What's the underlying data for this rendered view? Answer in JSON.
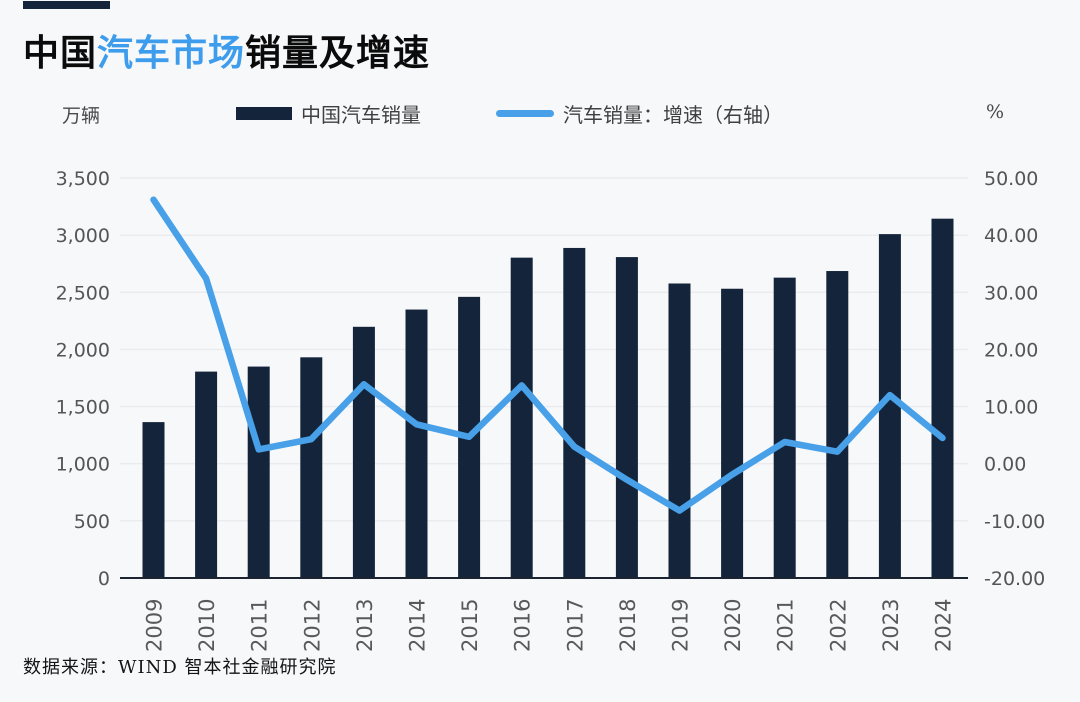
{
  "title": {
    "prefix": "中国",
    "highlight": "汽车市场",
    "suffix": "销量及增速"
  },
  "colors": {
    "bar": "#14243A",
    "line": "#47A0E8",
    "title_highlight": "#3E9CEC",
    "accent_bar": "#14243A",
    "background": "#F7F8FA",
    "grid": "#E9EBEF",
    "zero_axis": "#1B2430",
    "tick_text": "#555555",
    "year_text": "#595959"
  },
  "legend": {
    "bar_label": "中国汽车销量",
    "line_label": "汽车销量：增速（右轴）"
  },
  "source": "数据来源：WIND 智本社金融研究院",
  "chart_data": {
    "type": "combo-bar-line",
    "title": "中国汽车市场销量及增速",
    "categories": [
      "2009",
      "2010",
      "2011",
      "2012",
      "2013",
      "2014",
      "2015",
      "2016",
      "2017",
      "2018",
      "2019",
      "2020",
      "2021",
      "2022",
      "2023",
      "2024"
    ],
    "series": [
      {
        "name": "中国汽车销量",
        "type": "bar",
        "axis": "left",
        "unit": "万辆",
        "color": "#14243A",
        "values": [
          1364,
          1806,
          1850,
          1931,
          2198,
          2349,
          2460,
          2803,
          2888,
          2808,
          2577,
          2531,
          2628,
          2686,
          3009,
          3144
        ]
      },
      {
        "name": "汽车销量：增速（右轴）",
        "type": "line",
        "axis": "right",
        "unit": "%",
        "color": "#47A0E8",
        "values": [
          46.2,
          32.4,
          2.5,
          4.3,
          13.9,
          6.9,
          4.7,
          13.7,
          3.0,
          -2.8,
          -8.2,
          -1.9,
          3.8,
          2.1,
          12.0,
          4.5
        ]
      }
    ],
    "left_axis": {
      "unit": "万辆",
      "min": 0,
      "max": 3500,
      "step": 500,
      "tick_labels": [
        "0",
        "500",
        "1,000",
        "1,500",
        "2,000",
        "2,500",
        "3,000",
        "3,500"
      ]
    },
    "right_axis": {
      "unit": "%",
      "min": -20,
      "max": 50,
      "step": 10,
      "tick_labels": [
        "-20.00",
        "-10.00",
        "0.00",
        "10.00",
        "20.00",
        "30.00",
        "40.00",
        "50.00"
      ]
    },
    "grid": true,
    "legend_position": "top"
  }
}
